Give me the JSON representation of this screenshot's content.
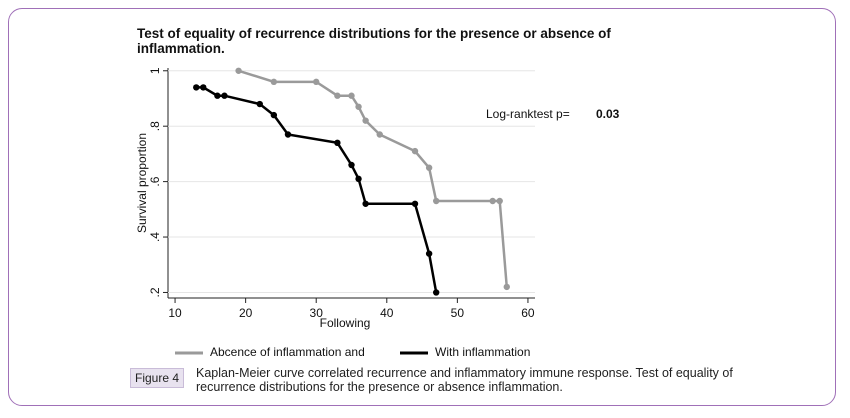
{
  "chart_data": {
    "type": "line",
    "title": "Test of equality of recurrence distributions for the presence or absence of inflammation.",
    "x_label": "Following",
    "y_label": "Survival proportion",
    "xlim": [
      9,
      61
    ],
    "xticks": [
      10,
      20,
      30,
      40,
      50,
      60
    ],
    "ylim": [
      0.18,
      1.01
    ],
    "yticks": [
      {
        "value": 0.2,
        "label": ".2"
      },
      {
        "value": 0.4,
        "label": ".4"
      },
      {
        "value": 0.6,
        "label": ".6"
      },
      {
        "value": 0.8,
        "label": ".8"
      },
      {
        "value": 1,
        "label": "1"
      }
    ],
    "grid": true,
    "annotation": {
      "text": "Log-ranktest p=",
      "value_text": "0.03"
    },
    "series": [
      {
        "name": "Abcence of inflammation and",
        "color": "#9a9a9a",
        "x": [
          19,
          24,
          30,
          33,
          35,
          36,
          37,
          39,
          44,
          46,
          47,
          55,
          56,
          57
        ],
        "values": [
          1.0,
          0.96,
          0.96,
          0.91,
          0.91,
          0.87,
          0.82,
          0.77,
          0.71,
          0.65,
          0.53,
          0.53,
          0.53,
          0.22
        ]
      },
      {
        "name": "With inflammation",
        "color": "#000000",
        "x": [
          13,
          14,
          16,
          17,
          22,
          24,
          26,
          33,
          35,
          36,
          37,
          44,
          46,
          47
        ],
        "values": [
          0.94,
          0.94,
          0.91,
          0.91,
          0.88,
          0.84,
          0.77,
          0.74,
          0.66,
          0.61,
          0.52,
          0.52,
          0.34,
          0.2
        ]
      }
    ]
  },
  "figure": {
    "label": "Figure 4",
    "caption": "Kaplan-Meier curve correlated recurrence and inflammatory immune response. Test of equality of recurrence distributions for the presence or absence inflammation."
  }
}
